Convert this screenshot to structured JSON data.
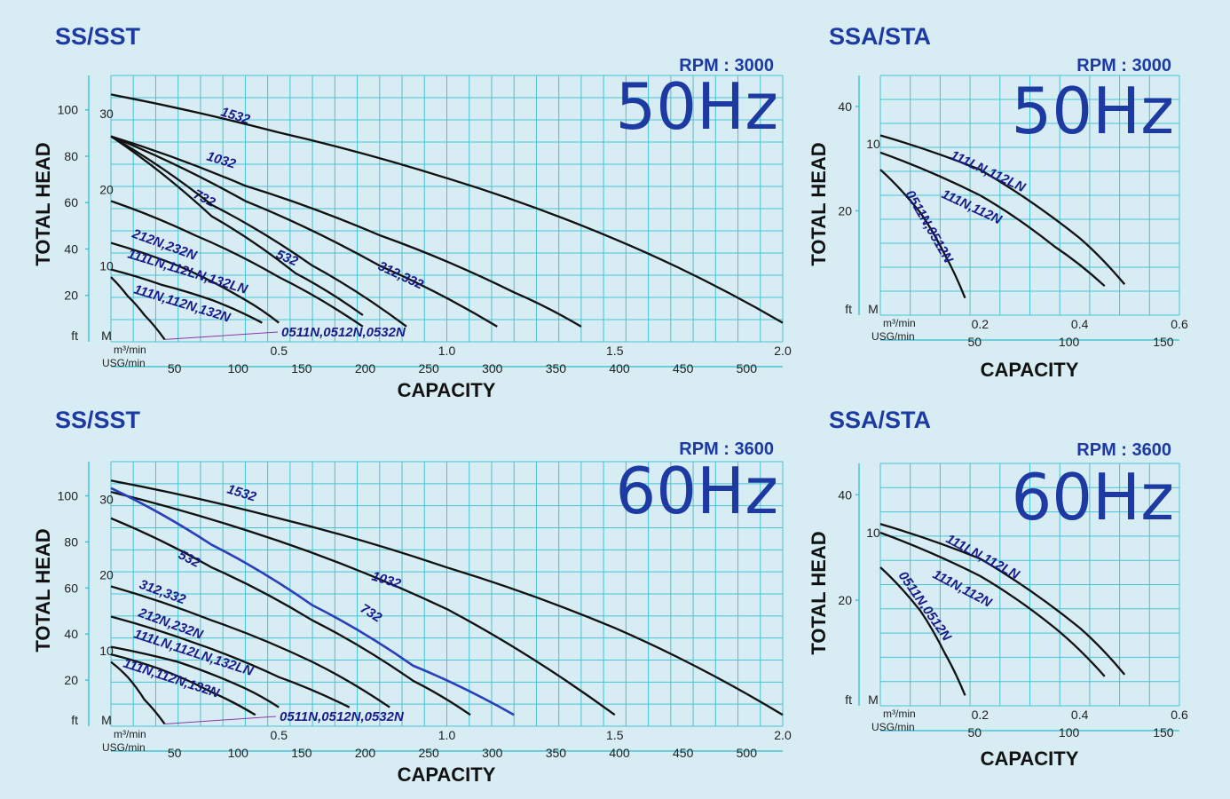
{
  "colors": {
    "grid": "#48c3d3",
    "curve": "#111111",
    "accent": "#1d3aa3",
    "background": "#d7ecf3"
  },
  "chart_data": [
    {
      "type": "line",
      "title": "SS/SST",
      "rpm": "RPM : 3000",
      "frequency": "50Hz",
      "ylabel": "TOTAL HEAD",
      "xlabel": "CAPACITY",
      "y_unit_ft": "ft",
      "y_unit_m": "M",
      "x_unit_m3": "m³/min",
      "x_unit_usg": "USG/min",
      "x_ticks_m3": [
        0.5,
        1.0,
        1.5,
        2.0
      ],
      "x_tick_labels_m3": [
        "0.5",
        "1.0",
        "1.5",
        "2.0"
      ],
      "x_ticks_usg": [
        50,
        100,
        150,
        200,
        250,
        300,
        350,
        400,
        450,
        500
      ],
      "y_ticks_ft": [
        20,
        40,
        60,
        80,
        100
      ],
      "y_ticks_m": [
        10,
        20,
        30
      ],
      "xlim_m3": [
        0,
        2.0
      ],
      "ylim_m": [
        0,
        35
      ],
      "series": [
        {
          "name": "1532",
          "x": [
            0.0,
            0.5,
            1.0,
            1.5,
            2.0
          ],
          "y": [
            32.5,
            27.5,
            21.5,
            13.5,
            2.5
          ]
        },
        {
          "name": "1032",
          "x": [
            0.0,
            0.4,
            0.8,
            1.2,
            1.4
          ],
          "y": [
            27,
            20.5,
            14,
            6.5,
            2.0
          ]
        },
        {
          "name": "732",
          "x": [
            0.0,
            0.4,
            0.8,
            1.15
          ],
          "y": [
            27,
            18.5,
            10,
            2.0
          ]
        },
        {
          "name": "532",
          "x": [
            0.0,
            0.3,
            0.6,
            0.88
          ],
          "y": [
            27,
            18,
            10,
            2.0
          ]
        },
        {
          "name": "312,332",
          "x": [
            0.0,
            0.3,
            0.55,
            0.75
          ],
          "y": [
            27,
            16.5,
            9,
            3.5
          ]
        },
        {
          "name": "212N,232N",
          "x": [
            0.0,
            0.25,
            0.5,
            0.75
          ],
          "y": [
            18.5,
            14,
            8.5,
            2.0
          ]
        },
        {
          "name": "111LN,112LN,132LN",
          "x": [
            0.0,
            0.2,
            0.4,
            0.5
          ],
          "y": [
            13,
            10,
            5.5,
            2.5
          ]
        },
        {
          "name": "111N,112N,132N",
          "x": [
            0.0,
            0.15,
            0.3,
            0.45
          ],
          "y": [
            9.5,
            7.5,
            5.5,
            2.5
          ]
        },
        {
          "name": "0511N,0512N,0532N",
          "x": [
            0.0,
            0.05,
            0.1,
            0.16
          ],
          "y": [
            8.5,
            6,
            3.5,
            0.3
          ]
        }
      ]
    },
    {
      "type": "line",
      "title": "SSA/STA",
      "rpm": "RPM : 3000",
      "frequency": "50Hz",
      "ylabel": "TOTAL HEAD",
      "xlabel": "CAPACITY",
      "y_unit_ft": "ft",
      "y_unit_m": "M",
      "x_unit_m3": "m³/min",
      "x_unit_usg": "USG/min",
      "x_ticks_m3": [
        0.2,
        0.4,
        0.6
      ],
      "x_ticks_usg": [
        50,
        100,
        150
      ],
      "y_ticks_ft": [
        20,
        40
      ],
      "y_ticks_m": [
        10
      ],
      "xlim_m3": [
        0,
        0.6
      ],
      "ylim_m": [
        0,
        14
      ],
      "series": [
        {
          "name": "111LN,112LN",
          "x": [
            0.0,
            0.2,
            0.4,
            0.49
          ],
          "y": [
            10.5,
            8.5,
            4.5,
            1.8
          ]
        },
        {
          "name": "111N,112N",
          "x": [
            0.0,
            0.2,
            0.35,
            0.45
          ],
          "y": [
            9.5,
            7.0,
            4.0,
            1.7
          ]
        },
        {
          "name": "0511N,0512N",
          "x": [
            0.0,
            0.08,
            0.13,
            0.17
          ],
          "y": [
            8.5,
            6.0,
            3.5,
            1.0
          ]
        }
      ]
    },
    {
      "type": "line",
      "title": "SS/SST",
      "rpm": "RPM : 3600",
      "frequency": "60Hz",
      "ylabel": "TOTAL HEAD",
      "xlabel": "CAPACITY",
      "y_unit_ft": "ft",
      "y_unit_m": "M",
      "x_unit_m3": "m³/min",
      "x_unit_usg": "USG/min",
      "x_ticks_m3": [
        0.5,
        1.0,
        1.5,
        2.0
      ],
      "x_tick_labels_m3": [
        "0.5",
        "1.0",
        "1.5",
        "2.0"
      ],
      "x_ticks_usg": [
        50,
        100,
        150,
        200,
        250,
        300,
        350,
        400,
        450,
        500
      ],
      "y_ticks_ft": [
        20,
        40,
        60,
        80,
        100
      ],
      "y_ticks_m": [
        10,
        20,
        30
      ],
      "xlim_m3": [
        0,
        2.0
      ],
      "ylim_m": [
        0,
        35
      ],
      "series": [
        {
          "name": "1532",
          "x": [
            0.0,
            0.5,
            1.0,
            1.5,
            2.0
          ],
          "y": [
            32.5,
            27.5,
            21.0,
            13.0,
            1.5
          ]
        },
        {
          "name": "1032",
          "x": [
            0.0,
            0.5,
            1.0,
            1.5
          ],
          "y": [
            31,
            24.5,
            15.5,
            1.5
          ]
        },
        {
          "name": "732",
          "x": [
            0.0,
            0.3,
            0.6,
            0.9,
            1.2
          ],
          "y": [
            31.5,
            24,
            16,
            8,
            1.5
          ]
        },
        {
          "name": "532",
          "x": [
            0.0,
            0.3,
            0.6,
            0.9,
            1.07
          ],
          "y": [
            27.5,
            21,
            14,
            6,
            1.5
          ]
        },
        {
          "name": "312,332",
          "x": [
            0.0,
            0.3,
            0.6,
            0.83
          ],
          "y": [
            18.5,
            14,
            8.5,
            2.5
          ]
        },
        {
          "name": "212N,232N",
          "x": [
            0.0,
            0.25,
            0.5,
            0.71
          ],
          "y": [
            14.5,
            11,
            6.5,
            2.5
          ]
        },
        {
          "name": "111LN,112LN,132LN",
          "x": [
            0.0,
            0.2,
            0.4,
            0.5
          ],
          "y": [
            10.5,
            8.5,
            5.0,
            2.5
          ]
        },
        {
          "name": "111N,112N,132N",
          "x": [
            0.0,
            0.15,
            0.3,
            0.43
          ],
          "y": [
            9.5,
            7.5,
            4.5,
            1.5
          ]
        },
        {
          "name": "0511N,0512N,0532N",
          "x": [
            0.0,
            0.05,
            0.1,
            0.16
          ],
          "y": [
            8.5,
            6.5,
            3.5,
            0.3
          ]
        }
      ]
    },
    {
      "type": "line",
      "title": "SSA/STA",
      "rpm": "RPM : 3600",
      "frequency": "60Hz",
      "ylabel": "TOTAL HEAD",
      "xlabel": "CAPACITY",
      "y_unit_ft": "ft",
      "y_unit_m": "M",
      "x_unit_m3": "m³/min",
      "x_unit_usg": "USG/min",
      "x_ticks_m3": [
        0.2,
        0.4,
        0.6
      ],
      "x_ticks_usg": [
        50,
        100,
        150
      ],
      "y_ticks_ft": [
        20,
        40
      ],
      "y_ticks_m": [
        10
      ],
      "xlim_m3": [
        0,
        0.6
      ],
      "ylim_m": [
        0,
        14
      ],
      "series": [
        {
          "name": "111LN,112LN",
          "x": [
            0.0,
            0.2,
            0.4,
            0.49
          ],
          "y": [
            10.5,
            8.5,
            4.5,
            1.8
          ]
        },
        {
          "name": "111N,112N",
          "x": [
            0.0,
            0.2,
            0.35,
            0.45
          ],
          "y": [
            10.0,
            7.5,
            4.5,
            1.7
          ]
        },
        {
          "name": "0511N,0512N",
          "x": [
            0.0,
            0.08,
            0.13,
            0.17
          ],
          "y": [
            8.0,
            5.5,
            3.0,
            0.6
          ]
        }
      ]
    }
  ]
}
